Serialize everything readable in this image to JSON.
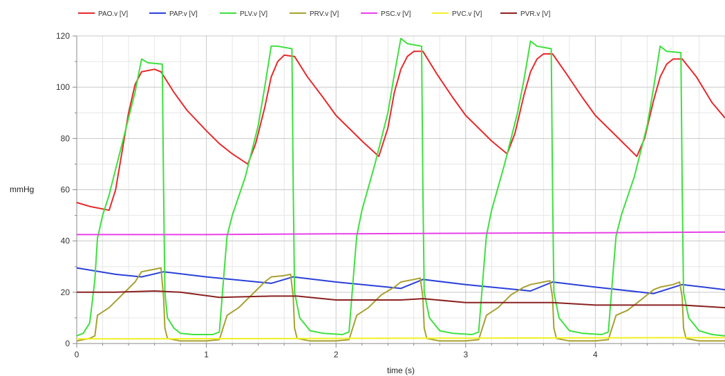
{
  "chart_data": {
    "type": "line",
    "title": "",
    "xlabel": "time (s)",
    "ylabel": "mmHg",
    "xlim": [
      0,
      5
    ],
    "ylim": [
      0,
      120
    ],
    "x_ticks": [
      0,
      1,
      2,
      3,
      4
    ],
    "y_ticks": [
      0,
      20,
      40,
      60,
      80,
      100,
      120
    ],
    "grid": true,
    "legend_position": "top",
    "series": [
      {
        "name": "PAO.v [V]",
        "color": "#e8282a",
        "points": [
          [
            0,
            55
          ],
          [
            0.1,
            53.5
          ],
          [
            0.25,
            52
          ],
          [
            0.3,
            60
          ],
          [
            0.35,
            75
          ],
          [
            0.4,
            90
          ],
          [
            0.45,
            101
          ],
          [
            0.5,
            106
          ],
          [
            0.6,
            107
          ],
          [
            0.65,
            106
          ],
          [
            0.75,
            98
          ],
          [
            0.85,
            91
          ],
          [
            1.0,
            83
          ],
          [
            1.1,
            78
          ],
          [
            1.2,
            74
          ],
          [
            1.32,
            70
          ],
          [
            1.38,
            78
          ],
          [
            1.45,
            92
          ],
          [
            1.5,
            104
          ],
          [
            1.55,
            110
          ],
          [
            1.6,
            112.5
          ],
          [
            1.68,
            112
          ],
          [
            1.78,
            104
          ],
          [
            1.9,
            96
          ],
          [
            2.0,
            89
          ],
          [
            2.1,
            84
          ],
          [
            2.2,
            79
          ],
          [
            2.33,
            73
          ],
          [
            2.4,
            84
          ],
          [
            2.45,
            98
          ],
          [
            2.5,
            107
          ],
          [
            2.55,
            112
          ],
          [
            2.6,
            114
          ],
          [
            2.67,
            114
          ],
          [
            2.78,
            105
          ],
          [
            2.9,
            96
          ],
          [
            3.0,
            89
          ],
          [
            3.1,
            84
          ],
          [
            3.2,
            79
          ],
          [
            3.32,
            74
          ],
          [
            3.38,
            82
          ],
          [
            3.45,
            97
          ],
          [
            3.5,
            106
          ],
          [
            3.55,
            111
          ],
          [
            3.6,
            113
          ],
          [
            3.67,
            113
          ],
          [
            3.78,
            105
          ],
          [
            3.9,
            96
          ],
          [
            4.0,
            89
          ],
          [
            4.1,
            84
          ],
          [
            4.2,
            79
          ],
          [
            4.32,
            73
          ],
          [
            4.38,
            80
          ],
          [
            4.45,
            95
          ],
          [
            4.5,
            104
          ],
          [
            4.55,
            109
          ],
          [
            4.6,
            111
          ],
          [
            4.67,
            111
          ],
          [
            4.78,
            104
          ],
          [
            4.9,
            94
          ],
          [
            5.0,
            88
          ]
        ]
      },
      {
        "name": "PAP.v [V]",
        "color": "#2a3fd8",
        "points": [
          [
            0,
            29.5
          ],
          [
            0.3,
            27
          ],
          [
            0.5,
            26
          ],
          [
            0.67,
            28
          ],
          [
            1.0,
            26
          ],
          [
            1.5,
            23.5
          ],
          [
            1.67,
            26
          ],
          [
            2.0,
            24
          ],
          [
            2.5,
            21.5
          ],
          [
            2.67,
            25
          ],
          [
            3.0,
            23
          ],
          [
            3.5,
            20.5
          ],
          [
            3.67,
            24
          ],
          [
            4.0,
            22
          ],
          [
            4.45,
            19.5
          ],
          [
            4.67,
            23
          ],
          [
            5.0,
            21
          ]
        ]
      },
      {
        "name": "PLV.v [V]",
        "color": "#3de03d",
        "points": [
          [
            0,
            3
          ],
          [
            0.05,
            4
          ],
          [
            0.1,
            8
          ],
          [
            0.14,
            25
          ],
          [
            0.16,
            41
          ],
          [
            0.2,
            50
          ],
          [
            0.25,
            58
          ],
          [
            0.3,
            68
          ],
          [
            0.35,
            78
          ],
          [
            0.4,
            88
          ],
          [
            0.45,
            98
          ],
          [
            0.5,
            111
          ],
          [
            0.55,
            109.5
          ],
          [
            0.66,
            109
          ],
          [
            0.67,
            60
          ],
          [
            0.68,
            20
          ],
          [
            0.7,
            10
          ],
          [
            0.75,
            6
          ],
          [
            0.8,
            4
          ],
          [
            0.9,
            3.5
          ],
          [
            1.05,
            3.5
          ],
          [
            1.1,
            4.5
          ],
          [
            1.14,
            30
          ],
          [
            1.16,
            42
          ],
          [
            1.2,
            50
          ],
          [
            1.3,
            65
          ],
          [
            1.4,
            85
          ],
          [
            1.45,
            100
          ],
          [
            1.5,
            116
          ],
          [
            1.55,
            116
          ],
          [
            1.66,
            115
          ],
          [
            1.67,
            60
          ],
          [
            1.68,
            20
          ],
          [
            1.72,
            10
          ],
          [
            1.8,
            5
          ],
          [
            1.9,
            4
          ],
          [
            2.05,
            3.5
          ],
          [
            2.1,
            4.5
          ],
          [
            2.14,
            30
          ],
          [
            2.16,
            42
          ],
          [
            2.2,
            52
          ],
          [
            2.3,
            70
          ],
          [
            2.4,
            90
          ],
          [
            2.45,
            105
          ],
          [
            2.5,
            119
          ],
          [
            2.55,
            117
          ],
          [
            2.66,
            116
          ],
          [
            2.67,
            60
          ],
          [
            2.68,
            20
          ],
          [
            2.72,
            10
          ],
          [
            2.8,
            5
          ],
          [
            2.9,
            4
          ],
          [
            3.05,
            3.5
          ],
          [
            3.1,
            4.5
          ],
          [
            3.14,
            30
          ],
          [
            3.16,
            42
          ],
          [
            3.2,
            52
          ],
          [
            3.3,
            70
          ],
          [
            3.4,
            90
          ],
          [
            3.45,
            103
          ],
          [
            3.5,
            118
          ],
          [
            3.55,
            116
          ],
          [
            3.66,
            115
          ],
          [
            3.67,
            60
          ],
          [
            3.68,
            20
          ],
          [
            3.72,
            10
          ],
          [
            3.8,
            5
          ],
          [
            3.9,
            4
          ],
          [
            4.05,
            3.5
          ],
          [
            4.1,
            4.5
          ],
          [
            4.14,
            30
          ],
          [
            4.16,
            42
          ],
          [
            4.2,
            50
          ],
          [
            4.3,
            65
          ],
          [
            4.4,
            85
          ],
          [
            4.45,
            100
          ],
          [
            4.5,
            116
          ],
          [
            4.55,
            114
          ],
          [
            4.66,
            113.5
          ],
          [
            4.67,
            60
          ],
          [
            4.68,
            20
          ],
          [
            4.72,
            10
          ],
          [
            4.8,
            5
          ],
          [
            4.9,
            3.5
          ],
          [
            5.0,
            3
          ]
        ]
      },
      {
        "name": "PRV.v [V]",
        "color": "#a8a030",
        "points": [
          [
            0,
            1
          ],
          [
            0.05,
            1.5
          ],
          [
            0.1,
            2
          ],
          [
            0.14,
            3
          ],
          [
            0.16,
            11
          ],
          [
            0.25,
            14
          ],
          [
            0.35,
            19
          ],
          [
            0.45,
            24
          ],
          [
            0.5,
            28
          ],
          [
            0.6,
            29
          ],
          [
            0.65,
            29.5
          ],
          [
            0.67,
            18
          ],
          [
            0.68,
            6
          ],
          [
            0.7,
            2
          ],
          [
            0.8,
            1
          ],
          [
            1.0,
            1
          ],
          [
            1.1,
            1.5
          ],
          [
            1.16,
            11
          ],
          [
            1.25,
            14
          ],
          [
            1.35,
            19
          ],
          [
            1.45,
            24
          ],
          [
            1.5,
            26
          ],
          [
            1.6,
            26.5
          ],
          [
            1.65,
            27
          ],
          [
            1.67,
            18
          ],
          [
            1.68,
            6
          ],
          [
            1.7,
            2
          ],
          [
            1.8,
            1
          ],
          [
            2.0,
            1
          ],
          [
            2.1,
            1.5
          ],
          [
            2.16,
            11
          ],
          [
            2.25,
            14
          ],
          [
            2.35,
            19
          ],
          [
            2.45,
            22
          ],
          [
            2.5,
            24
          ],
          [
            2.6,
            25
          ],
          [
            2.65,
            25.5
          ],
          [
            2.67,
            18
          ],
          [
            2.68,
            6
          ],
          [
            2.7,
            2
          ],
          [
            2.8,
            1
          ],
          [
            3.0,
            1
          ],
          [
            3.1,
            1.5
          ],
          [
            3.16,
            11
          ],
          [
            3.25,
            14
          ],
          [
            3.35,
            19
          ],
          [
            3.45,
            22
          ],
          [
            3.5,
            23
          ],
          [
            3.6,
            24
          ],
          [
            3.65,
            24.5
          ],
          [
            3.67,
            18
          ],
          [
            3.68,
            6
          ],
          [
            3.7,
            2
          ],
          [
            3.8,
            1
          ],
          [
            4.0,
            1
          ],
          [
            4.1,
            1.5
          ],
          [
            4.16,
            11
          ],
          [
            4.25,
            13
          ],
          [
            4.35,
            17
          ],
          [
            4.45,
            21
          ],
          [
            4.5,
            22
          ],
          [
            4.6,
            23
          ],
          [
            4.65,
            24
          ],
          [
            4.67,
            18
          ],
          [
            4.68,
            6
          ],
          [
            4.7,
            2
          ],
          [
            4.8,
            1
          ],
          [
            5.0,
            1
          ]
        ]
      },
      {
        "name": "PSC.v [V]",
        "color": "#e840e8",
        "points": [
          [
            0,
            42.5
          ],
          [
            1.0,
            42.5
          ],
          [
            2.0,
            42.8
          ],
          [
            3.0,
            43
          ],
          [
            4.0,
            43.2
          ],
          [
            5.0,
            43.5
          ]
        ]
      },
      {
        "name": "PVC.v [V]",
        "color": "#f0f020",
        "points": [
          [
            0,
            1.8
          ],
          [
            1.0,
            1.9
          ],
          [
            2.0,
            2
          ],
          [
            3.0,
            2.1
          ],
          [
            4.0,
            2.2
          ],
          [
            5.0,
            2.3
          ]
        ]
      },
      {
        "name": "PVR.v [V]",
        "color": "#8b2020",
        "points": [
          [
            0,
            20
          ],
          [
            0.3,
            20
          ],
          [
            0.6,
            20.5
          ],
          [
            0.8,
            20
          ],
          [
            1.1,
            18
          ],
          [
            1.5,
            18.5
          ],
          [
            1.7,
            18.5
          ],
          [
            2.0,
            17
          ],
          [
            2.5,
            17
          ],
          [
            2.67,
            17.5
          ],
          [
            3.0,
            16
          ],
          [
            3.5,
            16
          ],
          [
            3.67,
            16
          ],
          [
            4.0,
            15
          ],
          [
            4.5,
            15
          ],
          [
            4.67,
            15
          ],
          [
            5.0,
            14
          ]
        ]
      }
    ]
  }
}
